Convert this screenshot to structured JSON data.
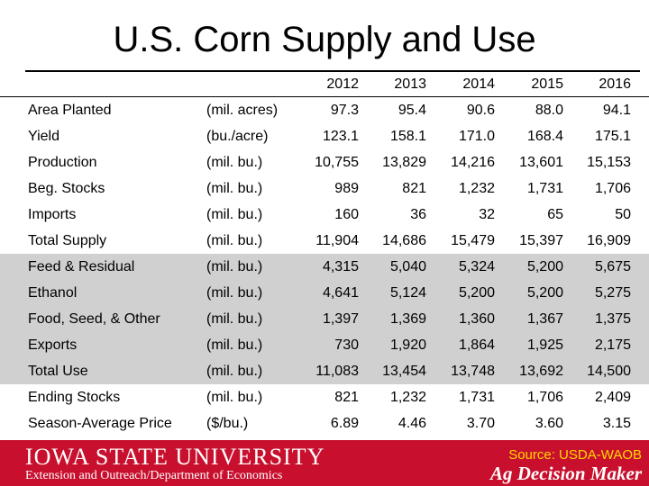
{
  "title": "U.S. Corn Supply and Use",
  "years": [
    "2012",
    "2013",
    "2014",
    "2015",
    "2016"
  ],
  "rows": [
    {
      "label": "Area Planted",
      "unit": "(mil. acres)",
      "values": [
        "97.3",
        "95.4",
        "90.6",
        "88.0",
        "94.1"
      ]
    },
    {
      "label": "Yield",
      "unit": "(bu./acre)",
      "values": [
        "123.1",
        "158.1",
        "171.0",
        "168.4",
        "175.1"
      ]
    },
    {
      "label": "Production",
      "unit": "(mil. bu.)",
      "values": [
        "10,755",
        "13,829",
        "14,216",
        "13,601",
        "15,153"
      ]
    },
    {
      "label": "Beg. Stocks",
      "unit": "(mil. bu.)",
      "values": [
        "989",
        "821",
        "1,232",
        "1,731",
        "1,706"
      ]
    },
    {
      "label": "Imports",
      "unit": "(mil. bu.)",
      "values": [
        "160",
        "36",
        "32",
        "65",
        "50"
      ]
    },
    {
      "label": "Total Supply",
      "unit": "(mil. bu.)",
      "values": [
        "11,904",
        "14,686",
        "15,479",
        "15,397",
        "16,909"
      ]
    },
    {
      "label": "Feed & Residual",
      "unit": "(mil. bu.)",
      "values": [
        "4,315",
        "5,040",
        "5,324",
        "5,200",
        "5,675"
      ]
    },
    {
      "label": "Ethanol",
      "unit": "(mil. bu.)",
      "values": [
        "4,641",
        "5,124",
        "5,200",
        "5,200",
        "5,275"
      ]
    },
    {
      "label": "Food, Seed, & Other",
      "unit": "(mil. bu.)",
      "values": [
        "1,397",
        "1,369",
        "1,360",
        "1,367",
        "1,375"
      ]
    },
    {
      "label": "Exports",
      "unit": "(mil. bu.)",
      "values": [
        "730",
        "1,920",
        "1,864",
        "1,925",
        "2,175"
      ]
    },
    {
      "label": "Total Use",
      "unit": "(mil. bu.)",
      "values": [
        "11,083",
        "13,454",
        "13,748",
        "13,692",
        "14,500"
      ]
    },
    {
      "label": "Ending Stocks",
      "unit": "(mil. bu.)",
      "values": [
        "821",
        "1,232",
        "1,731",
        "1,706",
        "2,409"
      ]
    },
    {
      "label": "Season-Average Price",
      "unit": "($/bu.)",
      "values": [
        "6.89",
        "4.46",
        "3.70",
        "3.60",
        "3.15"
      ]
    }
  ],
  "footer": {
    "university": "Iowa State University",
    "department": "Extension and Outreach/Department of Economics",
    "source": "Source: USDA-WAOB",
    "brand": "Ag Decision Maker"
  },
  "colors": {
    "footer_bg": "#c8102e",
    "shaded_rows": "#d0d0d0",
    "source_text": "#ffd700"
  }
}
